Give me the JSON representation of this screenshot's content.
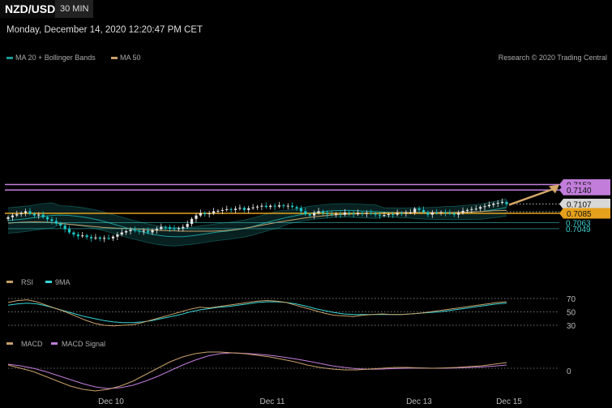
{
  "header": {
    "symbol": "NZD/USD",
    "timeframe": "30 MIN",
    "timestamp": "Monday, December 14, 2020 12:20:47 PM CET",
    "credit": "Research © 2020 Trading Central"
  },
  "colors": {
    "bollinger": "#1a9a96",
    "ma50": "#c8a06a",
    "resistance": "#c27ddb",
    "pivot": "#e6a11c",
    "support": "#3fd0d0",
    "last": "#d8d8d8",
    "bull": "#e6e6e6",
    "bear": "#1ec6c6",
    "rsi": "#c8a06a",
    "rsi_ma": "#35d6d6",
    "macd": "#c8a06a",
    "macd_signal": "#c27ddb",
    "arrow": "#d6a86a"
  },
  "legend": {
    "price": [
      "MA 20 + Bollinger Bands",
      "MA 50"
    ],
    "rsi": [
      "RSI",
      "9MA"
    ],
    "macd": [
      "MACD",
      "MACD Signal"
    ]
  },
  "chart_data": [
    {
      "type": "candlestick",
      "x_ticks": [
        "Dec 10",
        "Dec 11",
        "Dec 13",
        "Dec 15"
      ],
      "levels": [
        {
          "value": 0.7153,
          "label": "0.7153",
          "kind": "resistance"
        },
        {
          "value": 0.714,
          "label": "0.7140",
          "kind": "resistance"
        },
        {
          "value": 0.7107,
          "label": "0.7107",
          "kind": "last"
        },
        {
          "value": 0.7085,
          "label": "0.7085",
          "kind": "pivot"
        },
        {
          "value": 0.7063,
          "label": "0.7063",
          "kind": "support"
        },
        {
          "value": 0.7049,
          "label": "0.7049",
          "kind": "support"
        }
      ],
      "close_series": [
        0.7076,
        0.708,
        0.7083,
        0.7086,
        0.709,
        0.7084,
        0.708,
        0.7082,
        0.7076,
        0.7071,
        0.7067,
        0.7061,
        0.7056,
        0.7048,
        0.704,
        0.7035,
        0.7031,
        0.7033,
        0.7029,
        0.7026,
        0.7028,
        0.7025,
        0.7027,
        0.7026,
        0.703,
        0.7035,
        0.704,
        0.7043,
        0.7046,
        0.7044,
        0.7042,
        0.7044,
        0.704,
        0.7045,
        0.7048,
        0.7053,
        0.7052,
        0.7049,
        0.7048,
        0.705,
        0.7053,
        0.706,
        0.7072,
        0.708,
        0.7086,
        0.7083,
        0.7085,
        0.709,
        0.7091,
        0.7093,
        0.7095,
        0.7093,
        0.7096,
        0.7098,
        0.7093,
        0.7097,
        0.7099,
        0.7101,
        0.7103,
        0.71,
        0.7103,
        0.7101,
        0.7104,
        0.7102,
        0.7103,
        0.71,
        0.7097,
        0.709,
        0.7083,
        0.708,
        0.7086,
        0.709,
        0.7086,
        0.7083,
        0.7082,
        0.7084,
        0.7082,
        0.7087,
        0.7085,
        0.7083,
        0.7086,
        0.7084,
        0.7086,
        0.7085,
        0.7082,
        0.708,
        0.7081,
        0.7083,
        0.7082,
        0.7086,
        0.7085,
        0.7087,
        0.7087,
        0.7096,
        0.7093,
        0.7088,
        0.7082,
        0.7087,
        0.7086,
        0.7088,
        0.7086,
        0.7085,
        0.7082,
        0.7086,
        0.7091,
        0.7093,
        0.7095,
        0.7096,
        0.71,
        0.7102,
        0.7105,
        0.7108,
        0.711,
        0.7112,
        0.7107
      ],
      "ma20": [
        0.7068,
        0.707,
        0.7072,
        0.7075,
        0.7078,
        0.708,
        0.7081,
        0.708,
        0.7078,
        0.7075,
        0.7071,
        0.7066,
        0.706,
        0.7054,
        0.7048,
        0.7043,
        0.7038,
        0.7034,
        0.7031,
        0.703,
        0.703,
        0.7032,
        0.7035,
        0.7038,
        0.7041,
        0.7043,
        0.7046,
        0.7049,
        0.7054,
        0.706,
        0.7066,
        0.7071,
        0.7076,
        0.708,
        0.7084,
        0.7087,
        0.7089,
        0.7091,
        0.7092,
        0.7092,
        0.7091,
        0.709,
        0.7089,
        0.7088,
        0.7087,
        0.7086,
        0.7086,
        0.7085,
        0.7085,
        0.7085,
        0.7086,
        0.7086,
        0.7087,
        0.7088,
        0.7089,
        0.7092,
        0.7095,
        0.7099
      ],
      "ma50": [
        0.7062,
        0.7064,
        0.7065,
        0.7064,
        0.7061,
        0.7058,
        0.7055,
        0.7052,
        0.705,
        0.7049,
        0.7047,
        0.7045,
        0.7044,
        0.7043,
        0.7043,
        0.7043,
        0.7044,
        0.7047,
        0.7052,
        0.7058,
        0.7064,
        0.7069,
        0.7074,
        0.7078,
        0.7081,
        0.7083,
        0.7084,
        0.7085,
        0.7086,
        0.7087,
        0.7087,
        0.7087,
        0.7087,
        0.7087,
        0.7088,
        0.7089,
        0.7091,
        0.7092
      ]
    },
    {
      "type": "line",
      "title": "RSI",
      "y_ticks": [
        "70",
        "50",
        "30"
      ],
      "rsi": [
        64,
        67,
        68,
        65,
        60,
        55,
        50,
        44,
        38,
        33,
        30,
        29,
        30,
        31,
        34,
        38,
        42,
        46,
        50,
        54,
        57,
        56,
        58,
        60,
        62,
        64,
        66,
        67,
        66,
        64,
        60,
        56,
        52,
        48,
        45,
        44,
        43,
        45,
        46,
        47,
        46,
        46,
        47,
        48,
        50,
        52,
        54,
        56,
        58,
        60,
        62,
        64,
        65
      ],
      "rsi_ma": [
        60,
        62,
        63,
        62,
        59,
        55,
        51,
        47,
        43,
        40,
        37,
        35,
        34,
        34,
        35,
        37,
        40,
        43,
        46,
        50,
        53,
        55,
        57,
        58,
        60,
        62,
        64,
        65,
        65,
        64,
        62,
        59,
        55,
        52,
        49,
        47,
        46,
        46,
        46,
        46,
        46,
        46,
        47,
        48,
        49,
        50,
        52,
        54,
        56,
        58,
        60,
        62,
        63
      ]
    },
    {
      "type": "line",
      "title": "MACD",
      "y_ticks": [
        "0"
      ],
      "macd": [
        0.2,
        0.0,
        -0.2,
        -0.5,
        -0.8,
        -1.1,
        -1.3,
        -1.4,
        -1.3,
        -1.1,
        -0.8,
        -0.4,
        0.0,
        0.4,
        0.7,
        0.9,
        1.0,
        1.0,
        0.95,
        0.9,
        0.8,
        0.7,
        0.55,
        0.4,
        0.2,
        0.05,
        -0.05,
        -0.1,
        -0.1,
        -0.05,
        0.0,
        0.05,
        0.05,
        0.02,
        0.0,
        0.02,
        0.05,
        0.1,
        0.15,
        0.25,
        0.35
      ],
      "macd_signal": [
        0.25,
        0.15,
        0.0,
        -0.2,
        -0.45,
        -0.7,
        -0.95,
        -1.15,
        -1.25,
        -1.2,
        -1.05,
        -0.8,
        -0.5,
        -0.15,
        0.2,
        0.5,
        0.75,
        0.9,
        0.95,
        0.92,
        0.87,
        0.8,
        0.7,
        0.58,
        0.45,
        0.3,
        0.15,
        0.05,
        -0.03,
        -0.06,
        -0.05,
        -0.02,
        0.0,
        0.01,
        0.0,
        0.0,
        0.02,
        0.05,
        0.08,
        0.13,
        0.2
      ]
    }
  ]
}
